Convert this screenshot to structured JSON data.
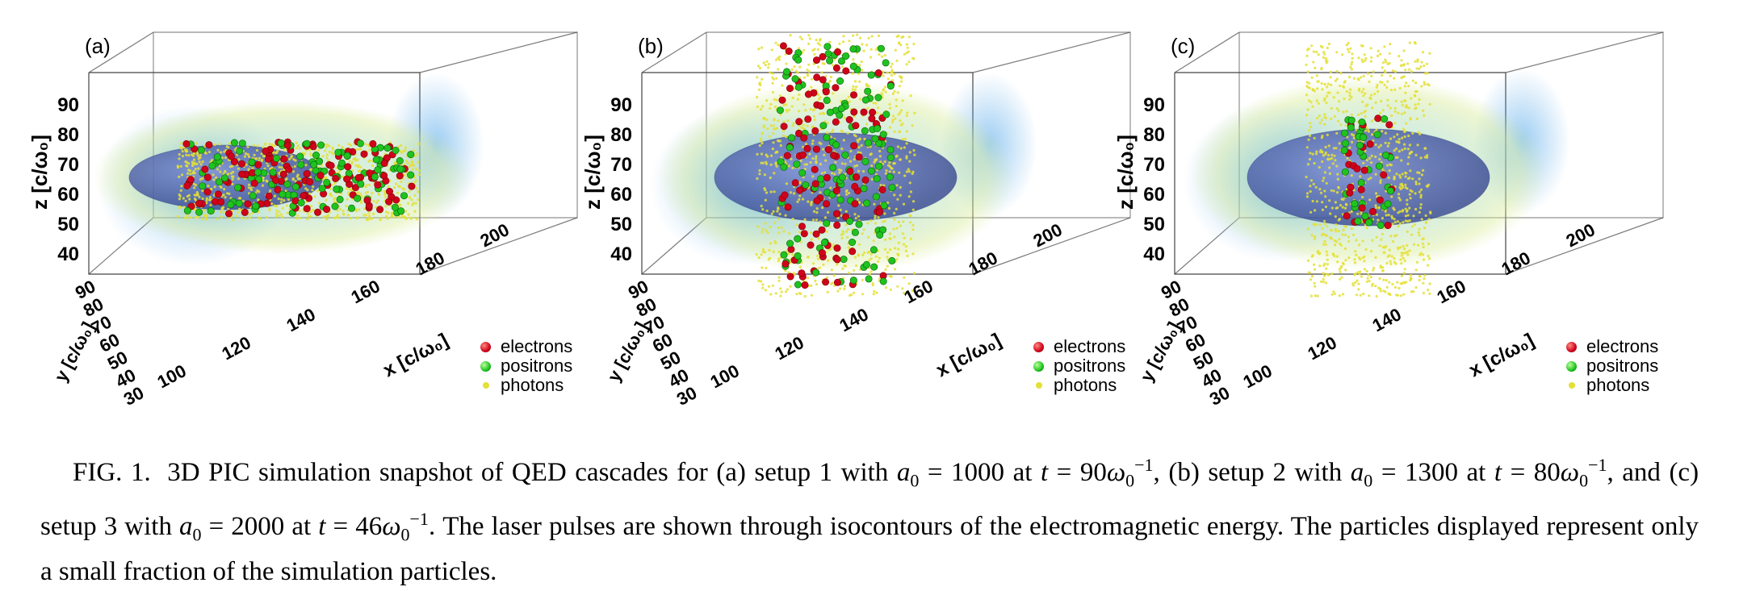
{
  "figure": {
    "panels": [
      {
        "label": "(a)",
        "z_ticks": [
          "90",
          "80",
          "70",
          "60",
          "50",
          "40"
        ],
        "z_label": "z [c/ω₀]",
        "y_ticks": [
          "90",
          "80",
          "70",
          "60",
          "50",
          "40",
          "30"
        ],
        "y_label": "y [c/ω₀]",
        "x_ticks": [
          "100",
          "120",
          "140",
          "160",
          "180",
          "200"
        ],
        "x_label": "x [c/ω₀]",
        "legend": [
          "electrons",
          "positrons",
          "photons"
        ]
      },
      {
        "label": "(b)",
        "z_ticks": [
          "90",
          "80",
          "70",
          "60",
          "50",
          "40"
        ],
        "z_label": "z [c/ω₀]",
        "y_ticks": [
          "90",
          "80",
          "70",
          "60",
          "50",
          "40",
          "30"
        ],
        "y_label": "y [c/ω₀]",
        "x_ticks": [
          "100",
          "120",
          "140",
          "160",
          "180",
          "200"
        ],
        "x_label": "x [c/ω₀]",
        "legend": [
          "electrons",
          "positrons",
          "photons"
        ]
      },
      {
        "label": "(c)",
        "z_ticks": [
          "90",
          "80",
          "70",
          "60",
          "50",
          "40"
        ],
        "z_label": "z [c/ω₀]",
        "y_ticks": [
          "90",
          "80",
          "70",
          "60",
          "50",
          "40",
          "30"
        ],
        "y_label": "y [c/ω₀]",
        "x_ticks": [
          "100",
          "120",
          "140",
          "160",
          "180",
          "200"
        ],
        "x_label": "x [c/ω₀]",
        "legend": [
          "electrons",
          "positrons",
          "photons"
        ]
      }
    ],
    "colors": {
      "electrons": "#d0021b",
      "positrons": "#1fc31f",
      "photons": "#e4e036",
      "laser_core": "#3b4fa8",
      "laser_shell": "#c8e6a0"
    }
  },
  "caption": {
    "label": "FIG. 1.",
    "s1": "3D PIC simulation snapshot of QED cascades for (a) setup 1 with",
    "a0_1": "1000",
    "t1": "90",
    "s2": ", (b) setup 2 with",
    "a0_2": "1300",
    "t2": "80",
    "s3": ", and (c) setup 3 with",
    "a0_3": "2000",
    "t3": "46",
    "s4": ". The laser pulses are shown through isocontours of the electromagnetic energy. The particles displayed represent only a small fraction of the simulation particles.",
    "w_at": "at"
  }
}
